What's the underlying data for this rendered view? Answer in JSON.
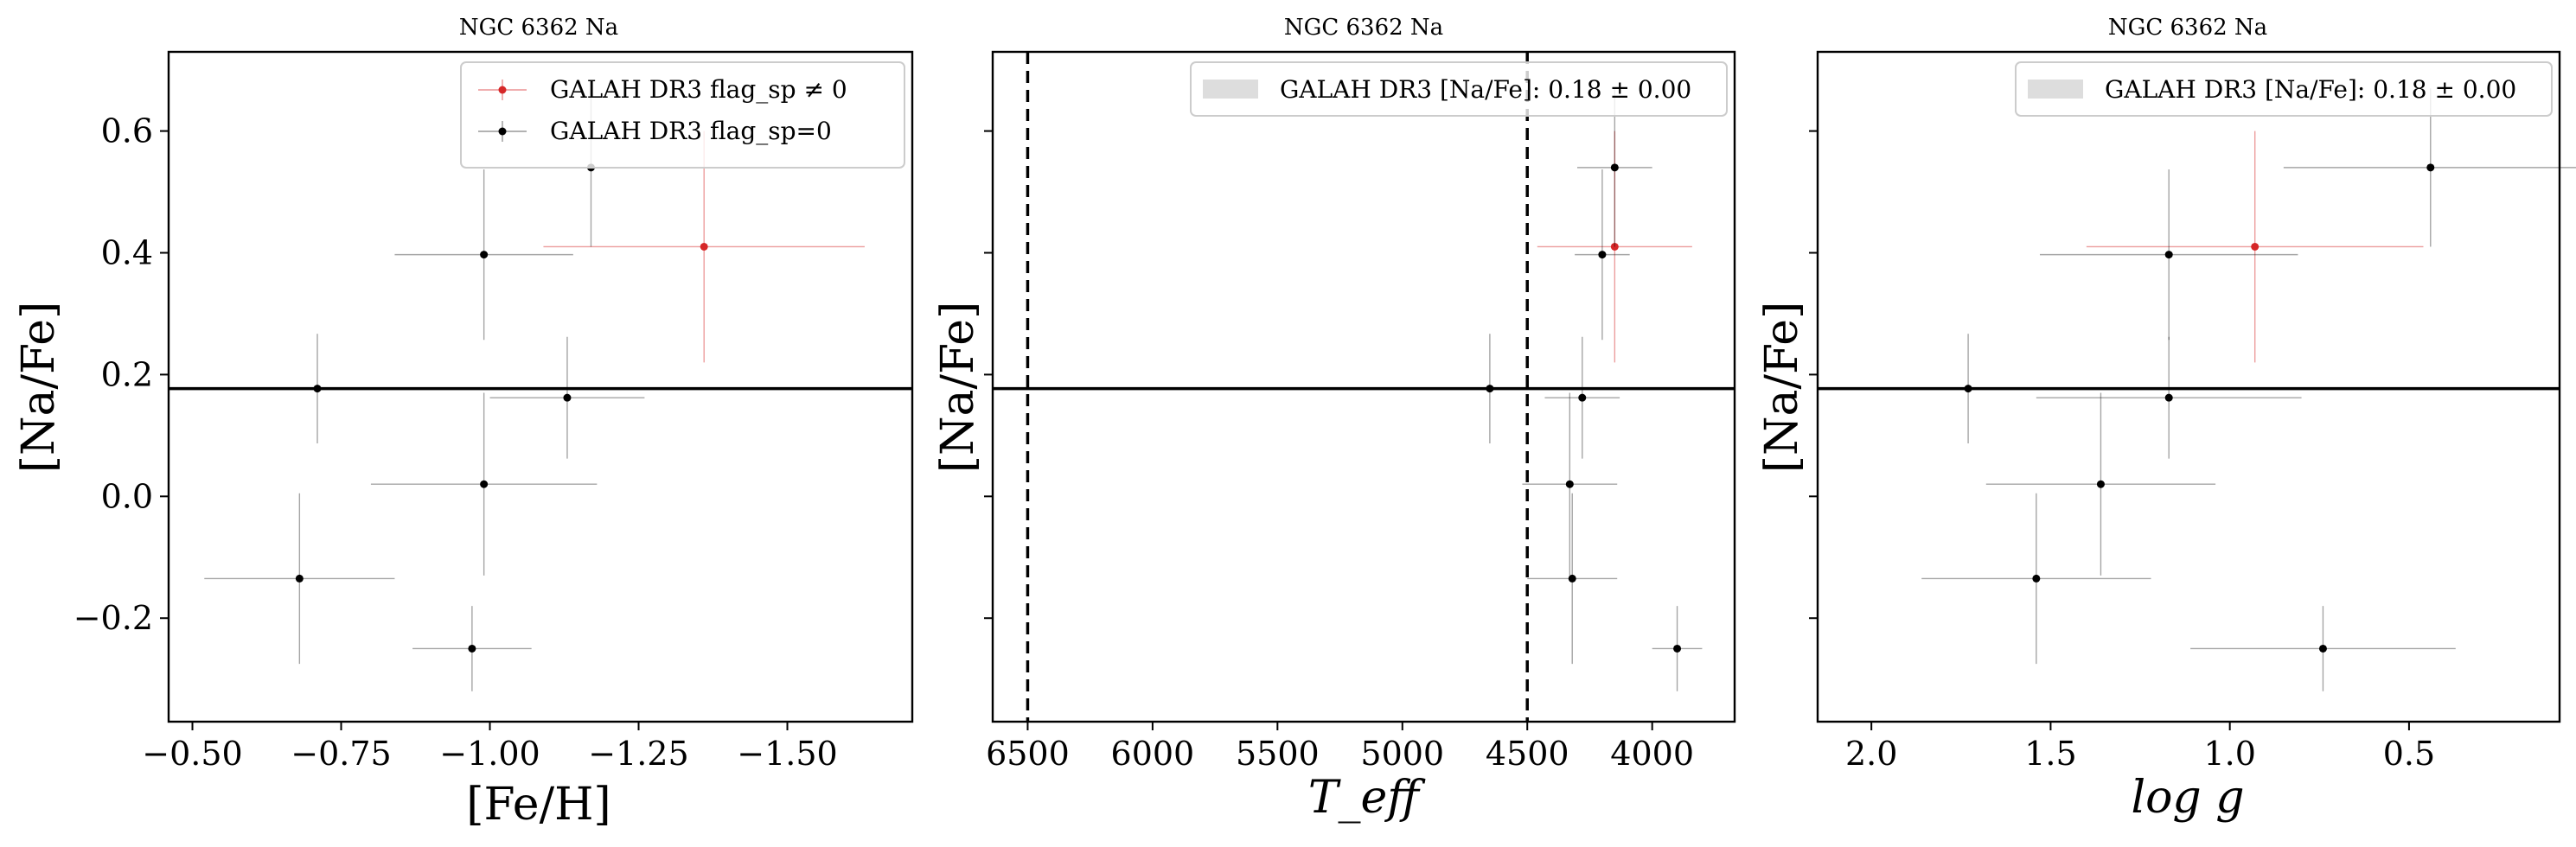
{
  "figure": {
    "panels": [
      {
        "title": "NGC 6362 Na",
        "xlabel": "[Fe/H]",
        "ylabel": "[Na/Fe]",
        "legend": {
          "entries": [
            {
              "label": "GALAH DR3 flag_sp ≠ 0",
              "kind": "flagged"
            },
            {
              "label": "GALAH DR3 flag_sp=0",
              "kind": "good"
            }
          ]
        }
      },
      {
        "title": "NGC 6362 Na",
        "xlabel": "T_eff",
        "ylabel": "[Na/Fe]",
        "legend": {
          "entries": [
            {
              "label": "GALAH DR3 [Na/Fe]: 0.18 ± 0.00",
              "kind": "band"
            }
          ]
        }
      },
      {
        "title": "NGC 6362 Na",
        "xlabel": "log g",
        "ylabel": "[Na/Fe]",
        "legend": {
          "entries": [
            {
              "label": "GALAH DR3 [Na/Fe]: 0.18 ± 0.00",
              "kind": "band"
            }
          ]
        }
      }
    ]
  },
  "chart_data": [
    {
      "type": "scatter",
      "title": "NGC 6362 Na",
      "xlabel": "[Fe/H]",
      "ylabel": "[Na/Fe]",
      "x_inverted": true,
      "xlim": [
        -0.46,
        -1.71
      ],
      "ylim": [
        -0.37,
        0.73
      ],
      "xticks": [
        -0.5,
        -0.75,
        -1.0,
        -1.25,
        -1.5
      ],
      "xtick_labels": [
        "−0.50",
        "−0.75",
        "−1.00",
        "−1.25",
        "−1.50"
      ],
      "yticks": [
        -0.2,
        0.0,
        0.2,
        0.4,
        0.6
      ],
      "ytick_labels": [
        "−0.2",
        "0.0",
        "0.2",
        "0.4",
        "0.6"
      ],
      "hline": 0.177,
      "legend_position": "upper right",
      "colors": {
        "flagged": "#d62728",
        "good": "#000000"
      },
      "series": [
        {
          "name": "GALAH DR3 flag_sp ≠ 0",
          "points": [
            {
              "x": -1.36,
              "y": 0.41,
              "xerr": 0.27,
              "yerr": 0.19
            }
          ]
        },
        {
          "name": "GALAH DR3 flag_sp=0",
          "points": [
            {
              "x": -1.17,
              "y": 0.54,
              "xerr": 0.17,
              "yerr": 0.13
            },
            {
              "x": -0.99,
              "y": 0.397,
              "xerr": 0.15,
              "yerr": 0.14
            },
            {
              "x": -0.71,
              "y": 0.177,
              "xerr": 0.0,
              "yerr": 0.09
            },
            {
              "x": -1.13,
              "y": 0.162,
              "xerr": 0.13,
              "yerr": 0.1
            },
            {
              "x": -0.99,
              "y": 0.02,
              "xerr": 0.19,
              "yerr": 0.15
            },
            {
              "x": -0.68,
              "y": -0.135,
              "xerr": 0.16,
              "yerr": 0.14
            },
            {
              "x": -0.97,
              "y": -0.25,
              "xerr": 0.1,
              "yerr": 0.07
            }
          ]
        }
      ]
    },
    {
      "type": "scatter",
      "title": "NGC 6362 Na",
      "xlabel": "T_eff",
      "ylabel": "[Na/Fe]",
      "x_inverted": true,
      "xlim": [
        6640,
        3670
      ],
      "ylim": [
        -0.37,
        0.73
      ],
      "xticks": [
        6500,
        6000,
        5500,
        5000,
        4500,
        4000
      ],
      "xtick_labels": [
        "6500",
        "6000",
        "5500",
        "5000",
        "4500",
        "4000"
      ],
      "yticks": [
        -0.2,
        0.0,
        0.2,
        0.4,
        0.6
      ],
      "hline": 0.177,
      "vlines": [
        6500,
        4500
      ],
      "band": {
        "center": 0.18,
        "err": 0.0
      },
      "legend_position": "upper right",
      "series": [
        {
          "name": "GALAH DR3 flag_sp ≠ 0",
          "points": [
            {
              "x": 4150,
              "y": 0.41,
              "xerr": 310,
              "yerr": 0.19
            }
          ]
        },
        {
          "name": "GALAH DR3 flag_sp=0",
          "points": [
            {
              "x": 4150,
              "y": 0.54,
              "xerr": 150,
              "yerr": 0.13
            },
            {
              "x": 4200,
              "y": 0.397,
              "xerr": 110,
              "yerr": 0.14
            },
            {
              "x": 4650,
              "y": 0.177,
              "xerr": 0,
              "yerr": 0.09
            },
            {
              "x": 4280,
              "y": 0.162,
              "xerr": 150,
              "yerr": 0.1
            },
            {
              "x": 4330,
              "y": 0.02,
              "xerr": 190,
              "yerr": 0.15
            },
            {
              "x": 4320,
              "y": -0.135,
              "xerr": 180,
              "yerr": 0.14
            },
            {
              "x": 3900,
              "y": -0.25,
              "xerr": 100,
              "yerr": 0.07
            }
          ]
        }
      ]
    },
    {
      "type": "scatter",
      "title": "NGC 6362 Na",
      "xlabel": "log g",
      "ylabel": "[Na/Fe]",
      "x_inverted": true,
      "xlim": [
        2.15,
        0.08
      ],
      "ylim": [
        -0.37,
        0.73
      ],
      "xticks": [
        2.0,
        1.5,
        1.0,
        0.5
      ],
      "xtick_labels": [
        "2.0",
        "1.5",
        "1.0",
        "0.5"
      ],
      "yticks": [
        -0.2,
        0.0,
        0.2,
        0.4,
        0.6
      ],
      "hline": 0.177,
      "band": {
        "center": 0.18,
        "err": 0.0
      },
      "legend_position": "upper right",
      "series": [
        {
          "name": "GALAH DR3 flag_sp ≠ 0",
          "points": [
            {
              "x": 0.93,
              "y": 0.41,
              "xerr": 0.47,
              "yerr": 0.19
            }
          ]
        },
        {
          "name": "GALAH DR3 flag_sp=0",
          "points": [
            {
              "x": 0.44,
              "y": 0.54,
              "xerr": 0.41,
              "yerr": 0.13
            },
            {
              "x": 1.17,
              "y": 0.397,
              "xerr": 0.36,
              "yerr": 0.14
            },
            {
              "x": 1.73,
              "y": 0.177,
              "xerr": 0.0,
              "yerr": 0.09
            },
            {
              "x": 1.17,
              "y": 0.162,
              "xerr": 0.37,
              "yerr": 0.1
            },
            {
              "x": 1.36,
              "y": 0.02,
              "xerr": 0.32,
              "yerr": 0.15
            },
            {
              "x": 1.54,
              "y": -0.135,
              "xerr": 0.32,
              "yerr": 0.14
            },
            {
              "x": 0.74,
              "y": -0.25,
              "xerr": 0.37,
              "yerr": 0.07
            }
          ]
        }
      ]
    }
  ]
}
